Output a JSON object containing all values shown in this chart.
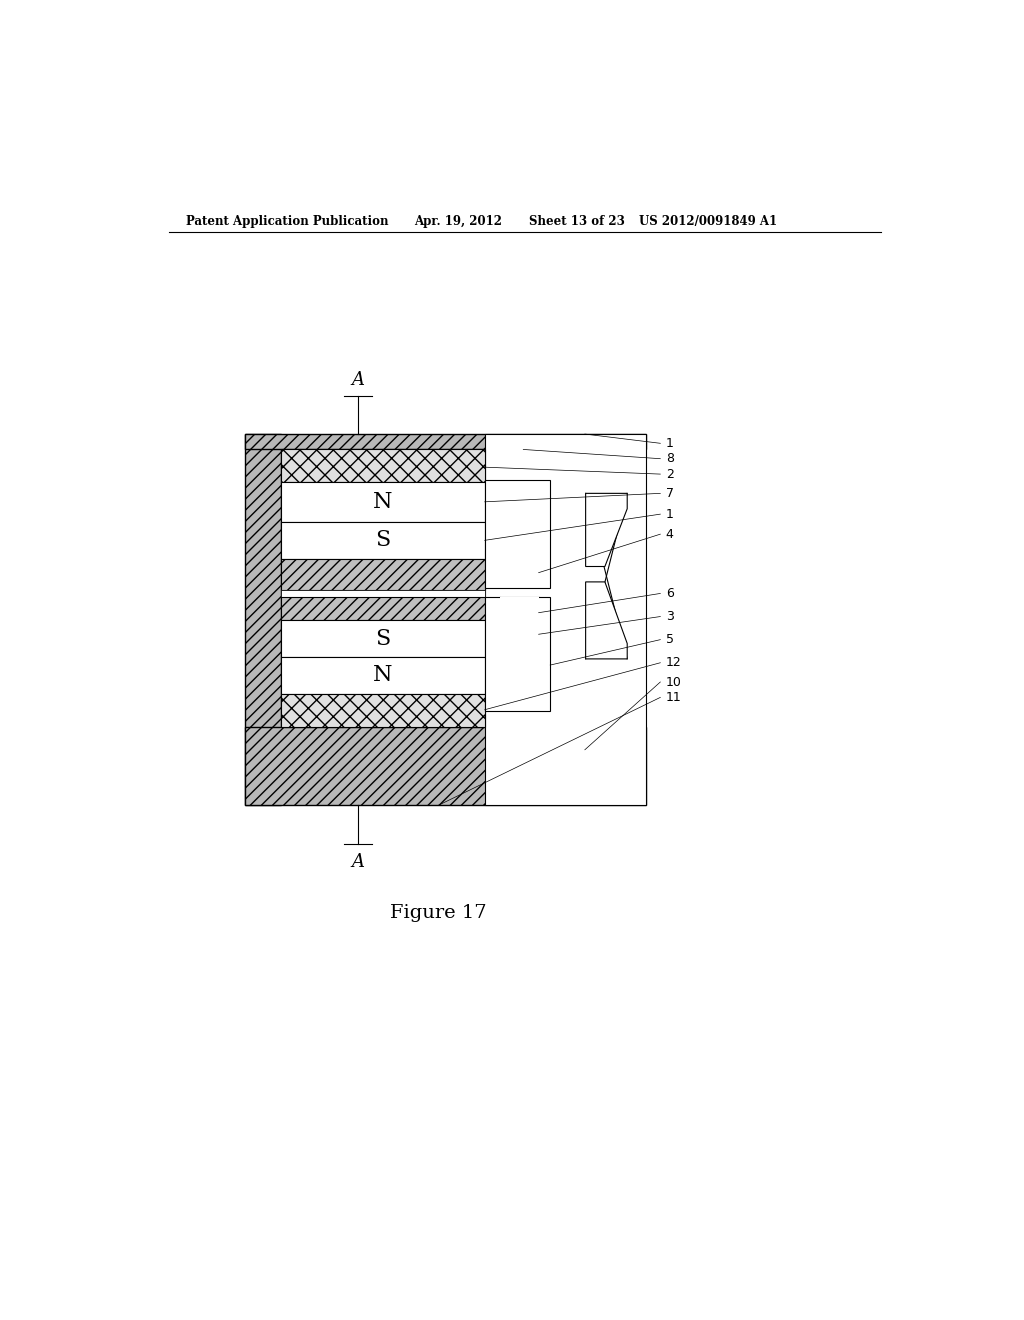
{
  "bg_color": "#ffffff",
  "header_text": "Patent Application Publication",
  "header_date": "Apr. 19, 2012",
  "header_sheet": "Sheet 13 of 23",
  "header_patent": "US 2012/0091849 A1",
  "figure_caption": "Figure 17"
}
